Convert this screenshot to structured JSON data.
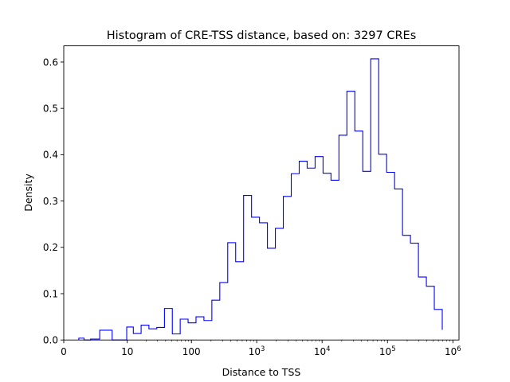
{
  "chart_data": {
    "type": "histogram-step",
    "title": "Histogram of CRE-TSS distance, based on: 3297 CREs",
    "xlabel": "Distance to TSS",
    "ylabel": "Density",
    "x_scale": "symlog",
    "x_linear_threshold": 10,
    "x_axis_offset": 0.5,
    "xlim": [
      0,
      1240000
    ],
    "ylim": [
      0,
      0.635
    ],
    "x_tick_labels": [
      {
        "value": 0,
        "base": "0",
        "sup": ""
      },
      {
        "value": 10,
        "base": "10",
        "sup": ""
      },
      {
        "value": 100,
        "base": "100",
        "sup": ""
      },
      {
        "value": 1000,
        "base": "10",
        "sup": "3"
      },
      {
        "value": 10000,
        "base": "10",
        "sup": "4"
      },
      {
        "value": 100000,
        "base": "10",
        "sup": "5"
      },
      {
        "value": 1000000,
        "base": "10",
        "sup": "6"
      }
    ],
    "y_ticks": [
      0.0,
      0.1,
      0.2,
      0.3,
      0.4,
      0.5,
      0.6
    ],
    "y_tick_labels": [
      "0.0",
      "0.1",
      "0.2",
      "0.3",
      "0.4",
      "0.5",
      "0.6"
    ],
    "line_color": "#0000ff",
    "bin_edges": [
      2.3,
      3.1,
      4.1,
      5.5,
      7.4,
      9.8,
      12.5,
      16.6,
      22.0,
      29.2,
      38.4,
      50.8,
      67.2,
      88.9,
      117.6,
      155.6,
      205.9,
      272.4,
      360.2,
      476.5,
      630.4,
      834.0,
      1103,
      1459,
      1930,
      2554,
      3378,
      4469,
      5911,
      7820,
      10345,
      13685,
      18104,
      23949,
      31682,
      41911,
      55443,
      73344,
      97025,
      128353,
      169797,
      224621,
      297146,
      393085,
      520000,
      687902
    ],
    "densities": [
      0.004,
      0.0,
      0.002,
      0.021,
      0.0,
      0.028,
      0.014,
      0.032,
      0.024,
      0.027,
      0.068,
      0.013,
      0.045,
      0.037,
      0.05,
      0.042,
      0.086,
      0.124,
      0.21,
      0.169,
      0.312,
      0.265,
      0.253,
      0.198,
      0.241,
      0.31,
      0.359,
      0.386,
      0.371,
      0.396,
      0.36,
      0.345,
      0.442,
      0.537,
      0.451,
      0.364,
      0.607,
      0.401,
      0.362,
      0.326,
      0.226,
      0.209,
      0.136,
      0.116,
      0.066,
      0.022
    ]
  }
}
